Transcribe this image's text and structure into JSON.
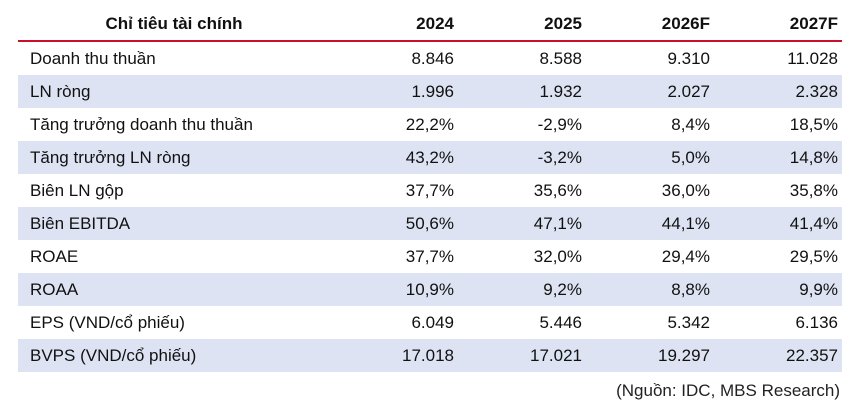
{
  "table": {
    "headers": [
      "Chỉ tiêu tài chính",
      "2024",
      "2025",
      "2026F",
      "2027F"
    ],
    "rows": [
      [
        "Doanh thu thuần",
        "8.846",
        "8.588",
        "9.310",
        "11.028"
      ],
      [
        "LN ròng",
        "1.996",
        "1.932",
        "2.027",
        "2.328"
      ],
      [
        "Tăng trưởng doanh thu thuần",
        "22,2%",
        "-2,9%",
        "8,4%",
        "18,5%"
      ],
      [
        "Tăng trưởng LN ròng",
        "43,2%",
        "-3,2%",
        "5,0%",
        "14,8%"
      ],
      [
        "Biên LN gộp",
        "37,7%",
        "35,6%",
        "36,0%",
        "35,8%"
      ],
      [
        "Biên EBITDA",
        "50,6%",
        "47,1%",
        "44,1%",
        "41,4%"
      ],
      [
        "ROAE",
        "37,7%",
        "32,0%",
        "29,4%",
        "29,5%"
      ],
      [
        "ROAA",
        "10,9%",
        "9,2%",
        "8,8%",
        "9,9%"
      ],
      [
        "EPS (VND/cổ phiếu)",
        "6.049",
        "5.446",
        "5.342",
        "6.136"
      ],
      [
        "BVPS (VND/cổ phiếu)",
        "17.018",
        "17.021",
        "19.297",
        "22.357"
      ]
    ]
  },
  "source": "(Nguồn: IDC, MBS Research)",
  "colors": {
    "header_rule": "#c8102e",
    "band": "#dde3f2"
  }
}
